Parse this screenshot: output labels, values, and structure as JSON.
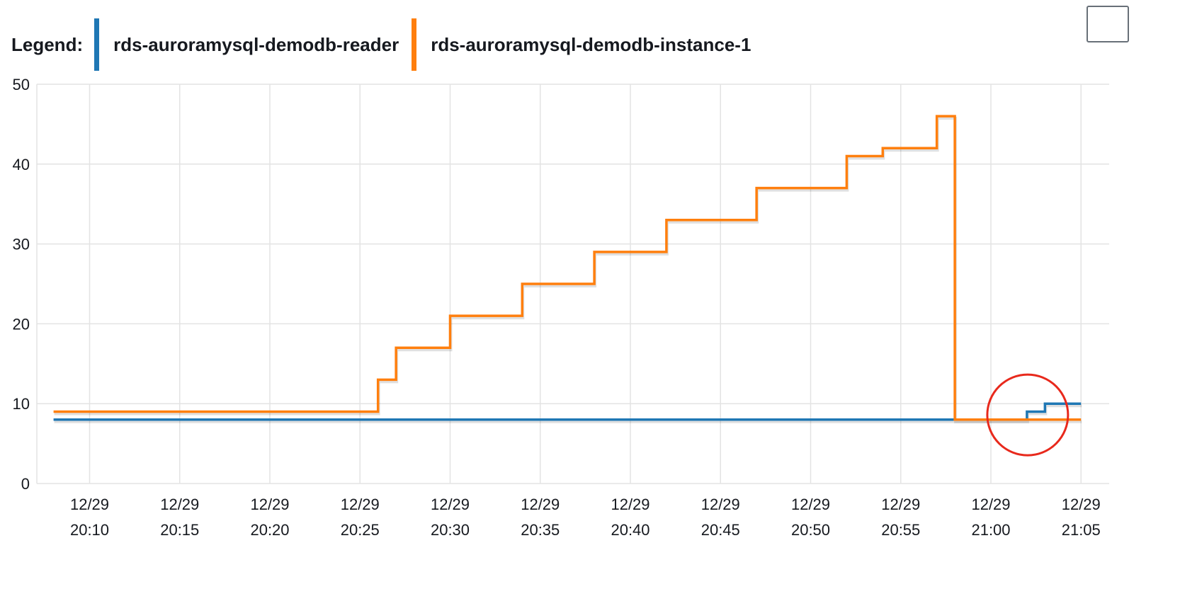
{
  "legend": {
    "title": "Legend:",
    "items": [
      {
        "label": "rds-auroramysql-demodb-reader",
        "color": "#1f77b4"
      },
      {
        "label": "rds-auroramysql-demodb-instance-1",
        "color": "#ff7f0e"
      }
    ]
  },
  "chart_data": {
    "type": "line",
    "step": true,
    "ylim": [
      0,
      50
    ],
    "yticks": [
      0,
      10,
      20,
      30,
      40,
      50
    ],
    "xlim": [
      "20:08",
      "21:06"
    ],
    "xticks": [
      {
        "date": "12/29",
        "time": "20:10"
      },
      {
        "date": "12/29",
        "time": "20:15"
      },
      {
        "date": "12/29",
        "time": "20:20"
      },
      {
        "date": "12/29",
        "time": "20:25"
      },
      {
        "date": "12/29",
        "time": "20:30"
      },
      {
        "date": "12/29",
        "time": "20:35"
      },
      {
        "date": "12/29",
        "time": "20:40"
      },
      {
        "date": "12/29",
        "time": "20:45"
      },
      {
        "date": "12/29",
        "time": "20:50"
      },
      {
        "date": "12/29",
        "time": "20:55"
      },
      {
        "date": "12/29",
        "time": "21:00"
      },
      {
        "date": "12/29",
        "time": "21:05"
      }
    ],
    "grid": true,
    "series": [
      {
        "name": "rds-auroramysql-demodb-reader",
        "color": "#1f77b4",
        "points": [
          {
            "x": "20:08",
            "y": 8
          },
          {
            "x": "21:02",
            "y": 9
          },
          {
            "x": "21:03",
            "y": 10
          },
          {
            "x": "21:05",
            "y": 10
          }
        ]
      },
      {
        "name": "rds-auroramysql-demodb-instance-1",
        "color": "#ff7f0e",
        "points": [
          {
            "x": "20:08",
            "y": 9
          },
          {
            "x": "20:26",
            "y": 13
          },
          {
            "x": "20:27",
            "y": 17
          },
          {
            "x": "20:30",
            "y": 21
          },
          {
            "x": "20:34",
            "y": 25
          },
          {
            "x": "20:38",
            "y": 29
          },
          {
            "x": "20:42",
            "y": 33
          },
          {
            "x": "20:47",
            "y": 37
          },
          {
            "x": "20:52",
            "y": 41
          },
          {
            "x": "20:54",
            "y": 42
          },
          {
            "x": "20:57",
            "y": 46
          },
          {
            "x": "20:58",
            "y": 8
          },
          {
            "x": "21:05",
            "y": 8
          }
        ]
      }
    ],
    "annotation": {
      "type": "circle",
      "color": "#e8291c",
      "x": "21:02",
      "y": 8.5
    }
  }
}
